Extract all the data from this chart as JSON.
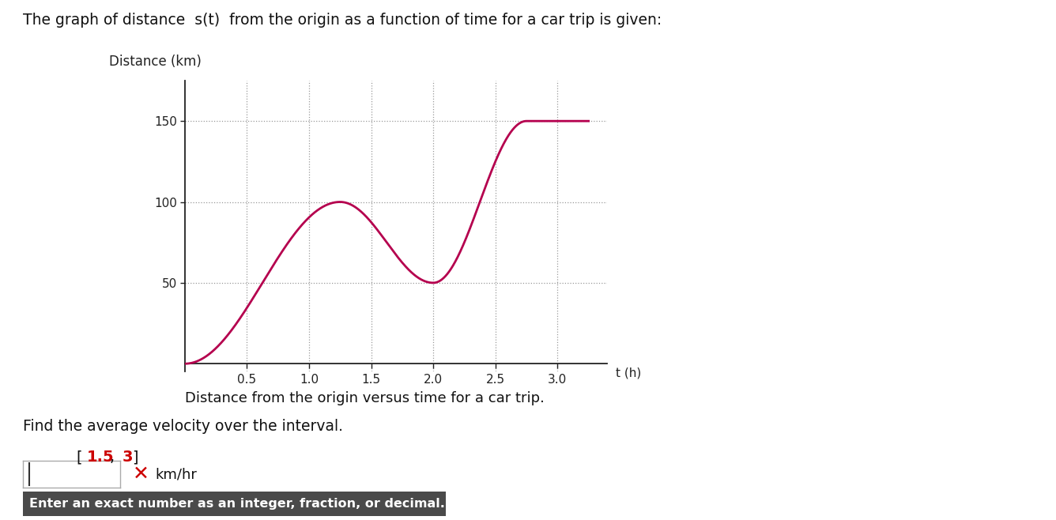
{
  "title_text": "The graph of distance  s(t)  from the origin as a function of time for a car trip is given:",
  "graph_ylabel": "Distance (km)",
  "graph_xlabel_label": "t (h)",
  "graph_caption": "Distance from the origin versus time for a car trip.",
  "find_text": "Find the average velocity over the interval.",
  "input_label": "km/hr",
  "hint_text": "Enter an exact number as an integer, fraction, or decimal.",
  "curve_color": "#b5004e",
  "grid_color": "#999999",
  "axis_color": "#222222",
  "bg_color": "#ffffff",
  "hint_bg": "#4a4a4a",
  "hint_fg": "#ffffff",
  "red_color": "#cc0000",
  "x_ticks": [
    0.5,
    1.0,
    1.5,
    2.0,
    2.5,
    3.0
  ],
  "y_ticks": [
    50,
    100,
    150
  ],
  "xlim": [
    0.0,
    3.4
  ],
  "ylim": [
    -5,
    175
  ],
  "t_end": 3.25
}
